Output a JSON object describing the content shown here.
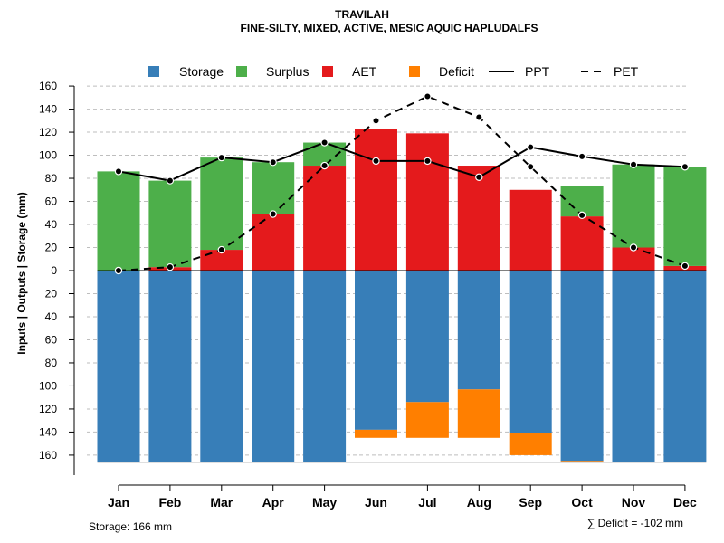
{
  "chart_data": {
    "type": "bar",
    "title": "TRAVILAH",
    "subtitle": "FINE-SILTY, MIXED, ACTIVE, MESIC AQUIC HAPLUDALFS",
    "ylabel": "Inputs | Outputs | Storage    (mm)",
    "ylim": [
      -166,
      160
    ],
    "y_ticks": [
      160,
      140,
      120,
      100,
      80,
      60,
      40,
      20,
      0,
      20,
      40,
      60,
      80,
      100,
      120,
      140,
      160
    ],
    "categories": [
      "Jan",
      "Feb",
      "Mar",
      "Apr",
      "May",
      "Jun",
      "Jul",
      "Aug",
      "Sep",
      "Oct",
      "Nov",
      "Dec"
    ],
    "series": [
      {
        "name": "AET",
        "values": [
          0,
          3,
          18,
          49,
          91,
          123,
          119,
          91,
          70,
          47,
          20,
          4
        ]
      },
      {
        "name": "Surplus",
        "values": [
          86,
          75,
          80,
          45,
          20,
          0,
          0,
          0,
          0,
          26,
          72,
          86
        ]
      },
      {
        "name": "Storage",
        "values": [
          166,
          166,
          166,
          166,
          166,
          138,
          114,
          103,
          141,
          165,
          166,
          166
        ]
      },
      {
        "name": "Deficit",
        "values": [
          0,
          0,
          0,
          0,
          0,
          7,
          31,
          42,
          19,
          1,
          0,
          0
        ]
      },
      {
        "name": "PPT",
        "values": [
          86,
          78,
          98,
          94,
          111,
          95,
          95,
          81,
          107,
          99,
          92,
          90
        ]
      },
      {
        "name": "PET",
        "values": [
          0,
          3,
          18,
          49,
          91,
          130,
          151,
          133,
          90,
          48,
          20,
          4
        ]
      }
    ],
    "legend": {
      "placement": "top",
      "items": [
        {
          "label": "Storage",
          "kind": "square",
          "color": "#377EB8"
        },
        {
          "label": "Surplus",
          "kind": "square",
          "color": "#4DAF4A"
        },
        {
          "label": "AET",
          "kind": "square",
          "color": "#E41A1C"
        },
        {
          "label": "Deficit",
          "kind": "square",
          "color": "#FF7F00"
        },
        {
          "label": "PPT",
          "kind": "solid-line",
          "color": "#000000"
        },
        {
          "label": "PET",
          "kind": "dashed-line",
          "color": "#000000"
        }
      ]
    },
    "storage_note": "Storage: 166 mm",
    "deficit_note": "∑ Deficit = -102 mm",
    "colors": {
      "storage": "#377EB8",
      "surplus": "#4DAF4A",
      "aet": "#E41A1C",
      "deficit": "#FF7F00",
      "line": "#000000",
      "grid": "#BEBEBE"
    }
  }
}
